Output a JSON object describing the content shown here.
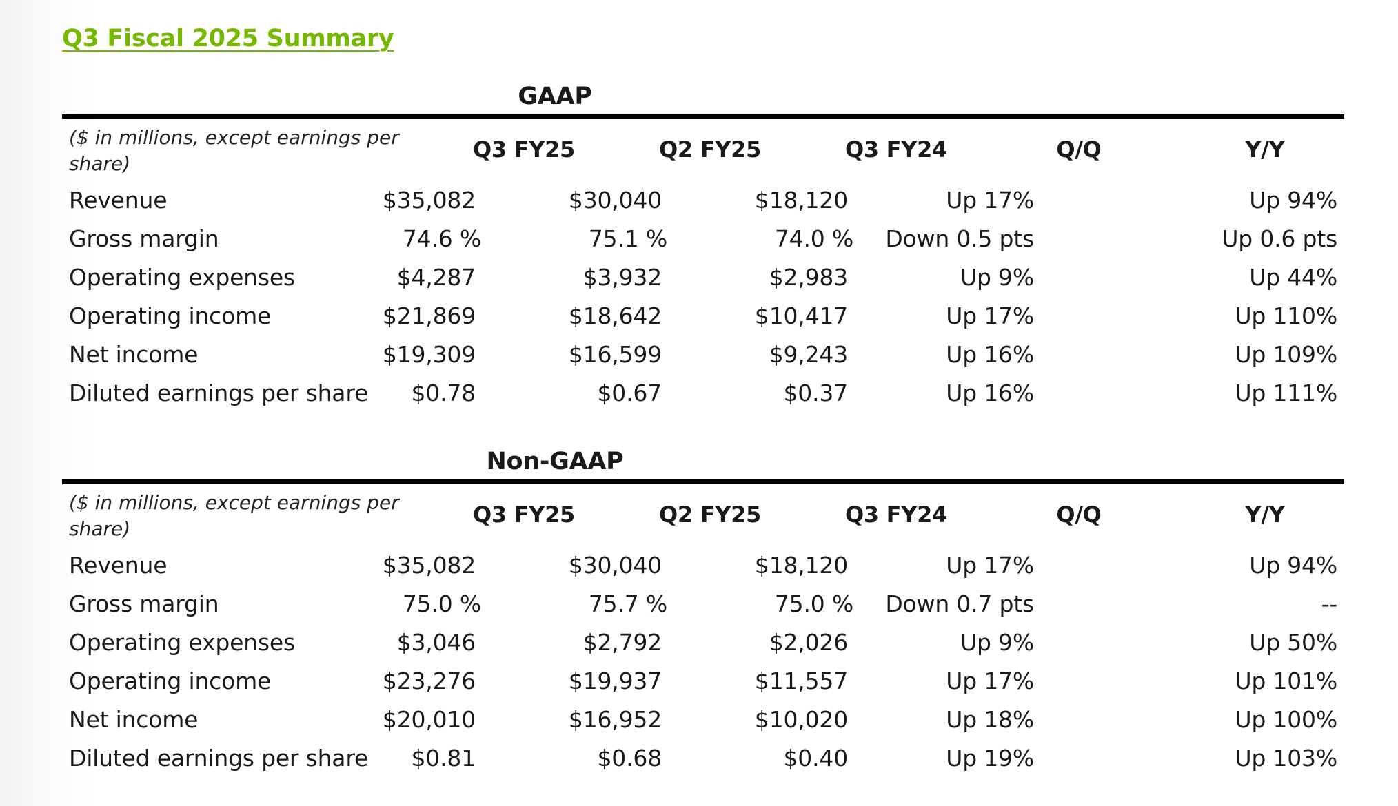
{
  "title": "Q3 Fiscal 2025 Summary",
  "columns": [
    "Q3 FY25",
    "Q2 FY25",
    "Q3 FY24",
    "Q/Q",
    "Y/Y"
  ],
  "units_note_line1": "($ in millions, except earnings per",
  "units_note_line2": "share)",
  "gaap": {
    "title": "GAAP",
    "rows": [
      {
        "label": "Revenue",
        "values": [
          "$35,082",
          "$30,040",
          "$18,120",
          "Up 17%",
          "Up 94%"
        ]
      },
      {
        "label": "Gross margin",
        "values": [
          "74.6 %",
          "75.1 %",
          "74.0 %",
          "Down 0.5 pts",
          "Up 0.6 pts"
        ]
      },
      {
        "label": "Operating expenses",
        "values": [
          "$4,287",
          "$3,932",
          "$2,983",
          "Up 9%",
          "Up 44%"
        ]
      },
      {
        "label": "Operating income",
        "values": [
          "$21,869",
          "$18,642",
          "$10,417",
          "Up 17%",
          "Up 110%"
        ]
      },
      {
        "label": "Net income",
        "values": [
          "$19,309",
          "$16,599",
          "$9,243",
          "Up 16%",
          "Up 109%"
        ]
      },
      {
        "label": "Diluted earnings per share",
        "values": [
          "$0.78",
          "$0.67",
          "$0.37",
          "Up 16%",
          "Up 111%"
        ]
      }
    ]
  },
  "non_gaap": {
    "title": "Non-GAAP",
    "rows": [
      {
        "label": "Revenue",
        "values": [
          "$35,082",
          "$30,040",
          "$18,120",
          "Up 17%",
          "Up 94%"
        ]
      },
      {
        "label": "Gross margin",
        "values": [
          "75.0 %",
          "75.7 %",
          "75.0 %",
          "Down 0.7 pts",
          "--"
        ]
      },
      {
        "label": "Operating expenses",
        "values": [
          "$3,046",
          "$2,792",
          "$2,026",
          "Up 9%",
          "Up 50%"
        ]
      },
      {
        "label": "Operating income",
        "values": [
          "$23,276",
          "$19,937",
          "$11,557",
          "Up 17%",
          "Up 101%"
        ]
      },
      {
        "label": "Net income",
        "values": [
          "$20,010",
          "$16,952",
          "$10,020",
          "Up 18%",
          "Up 100%"
        ]
      },
      {
        "label": "Diluted earnings per share",
        "values": [
          "$0.81",
          "$0.68",
          "$0.40",
          "Up 19%",
          "Up 103%"
        ]
      }
    ]
  },
  "colors": {
    "title_green": "#76b900",
    "rule": "#000000",
    "text": "#1a1a1a"
  }
}
